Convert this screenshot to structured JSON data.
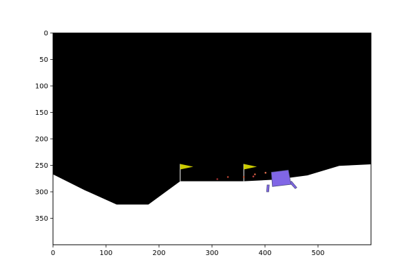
{
  "game": {
    "name": "",
    "world_width": 600,
    "world_height": 400,
    "sky_color": "#000000",
    "ground_color": "#ffffff",
    "terrain": [
      [
        0,
        267
      ],
      [
        60,
        297
      ],
      [
        120,
        324
      ],
      [
        180,
        324
      ],
      [
        240,
        280
      ],
      [
        300,
        280
      ],
      [
        360,
        280
      ],
      [
        420,
        277
      ],
      [
        480,
        269
      ],
      [
        540,
        251
      ],
      [
        600,
        248
      ]
    ],
    "landing_pad": {
      "x_left": 240,
      "x_right": 360,
      "y": 280
    },
    "flags": [
      {
        "name": "flag-left",
        "x": 240,
        "pole_top_y": 250,
        "color": "#cccc00"
      },
      {
        "name": "flag-right",
        "x": 360,
        "pole_top_y": 250,
        "color": "#cccc00"
      }
    ],
    "lander": {
      "body_color": "#8066e6",
      "outline_color": "#4d4d80",
      "body": [
        [
          412,
          263
        ],
        [
          444,
          259
        ],
        [
          449,
          286
        ],
        [
          414,
          290
        ]
      ],
      "legs": [
        [
          [
            404,
            287
          ],
          [
            408,
            287
          ],
          [
            407,
            300
          ],
          [
            403,
            300
          ]
        ],
        [
          [
            446,
            282
          ],
          [
            450,
            280
          ],
          [
            460,
            292
          ],
          [
            457,
            294
          ]
        ]
      ]
    },
    "particles": [
      {
        "x": 310,
        "y": 276,
        "color": "#a03030"
      },
      {
        "x": 330,
        "y": 272,
        "color": "#b04030"
      },
      {
        "x": 360,
        "y": 272,
        "color": "#c05030"
      },
      {
        "x": 378,
        "y": 271,
        "color": "#c04040"
      },
      {
        "x": 381,
        "y": 267,
        "color": "#d06040"
      },
      {
        "x": 401,
        "y": 264,
        "color": "#e07050"
      }
    ]
  },
  "axes": {
    "x_ticks": [
      0,
      100,
      200,
      300,
      400,
      500
    ],
    "y_ticks": [
      0,
      50,
      100,
      150,
      200,
      250,
      300,
      350
    ],
    "x_range": [
      0,
      600
    ],
    "y_range": [
      400,
      0
    ]
  }
}
